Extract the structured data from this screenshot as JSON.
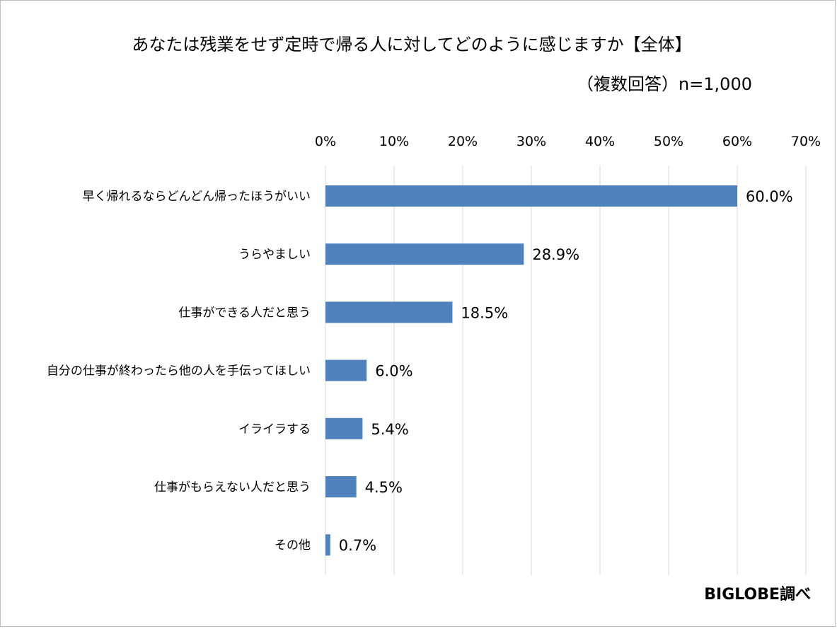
{
  "chart_data": {
    "type": "bar",
    "orientation": "horizontal",
    "title": "あなたは残業をせず定時で帰る人に対してどのように感じますか【全体】",
    "subtitle": "（複数回答）n=1,000",
    "categories": [
      "早く帰れるならどんどん帰ったほうがいい",
      "うらやましい",
      "仕事ができる人だと思う",
      "自分の仕事が終わったら他の人を手伝ってほしい",
      "イライラする",
      "仕事がもらえない人だと思う",
      "その他"
    ],
    "values": [
      60.0,
      28.9,
      18.5,
      6.0,
      5.4,
      4.5,
      0.7
    ],
    "value_labels": [
      "60.0%",
      "28.9%",
      "18.5%",
      "6.0%",
      "5.4%",
      "4.5%",
      "0.7%"
    ],
    "xlim": [
      0,
      70
    ],
    "xticks": [
      0,
      10,
      20,
      30,
      40,
      50,
      60,
      70
    ],
    "xtick_labels": [
      "0%",
      "10%",
      "20%",
      "30%",
      "40%",
      "50%",
      "60%",
      "70%"
    ],
    "x_axis_position": "top",
    "grid": true,
    "legend": "none",
    "bar_color": "#4f81bd",
    "source": "BIGLOBE調べ"
  }
}
